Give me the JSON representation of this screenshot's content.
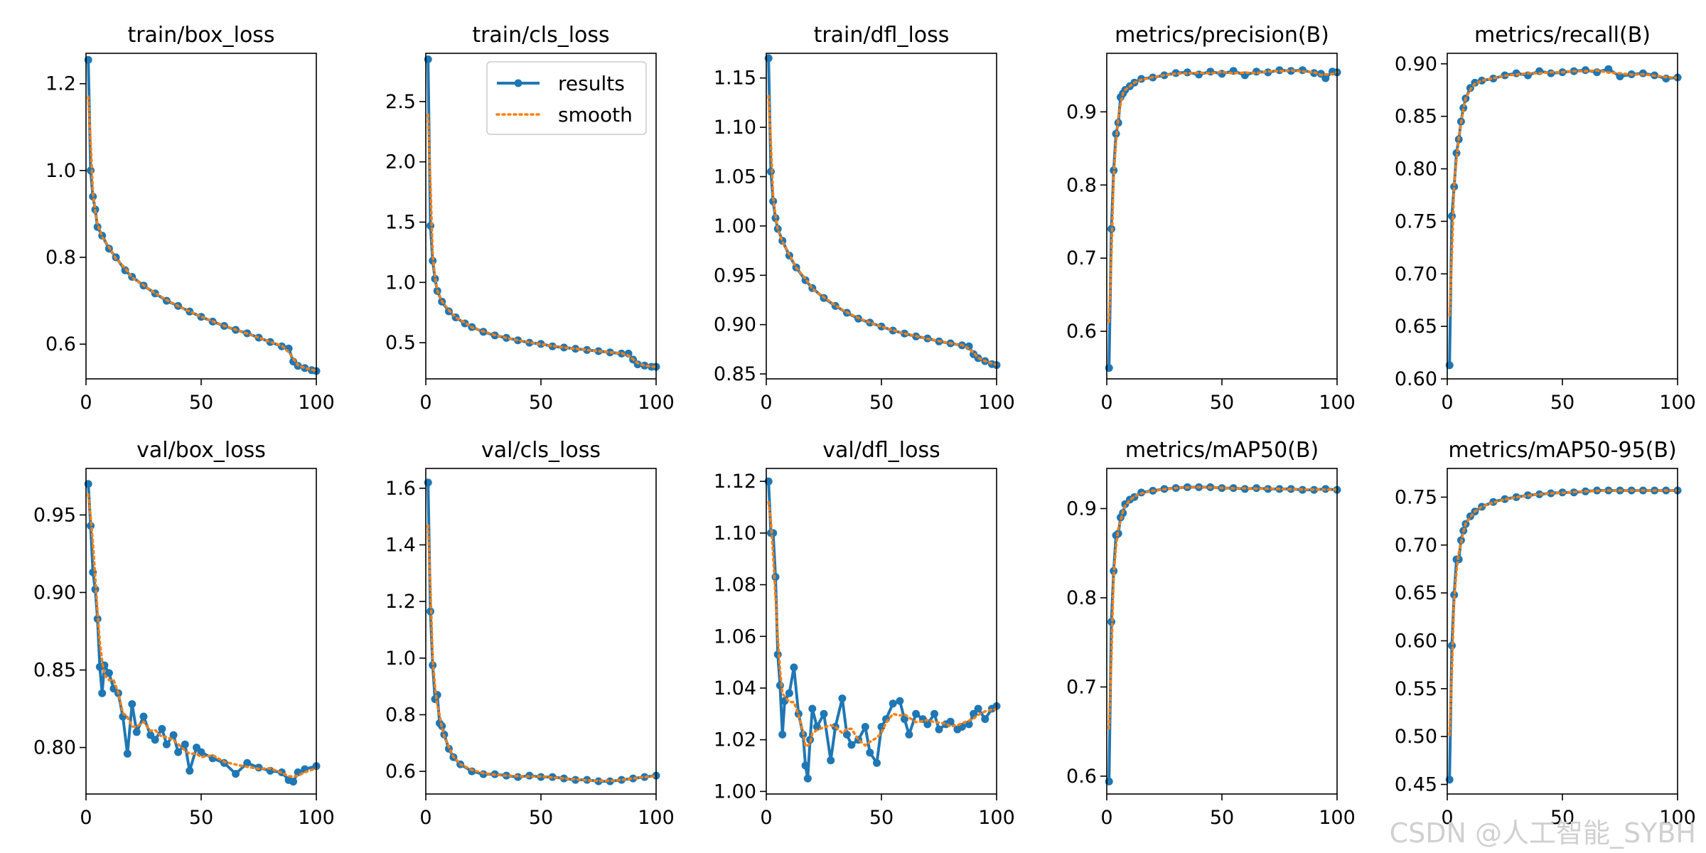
{
  "watermark": "CSDN @人工智能_SYBH",
  "legend": {
    "results_label": "results",
    "smooth_label": "smooth",
    "placement": "upper-right of train/cls_loss panel"
  },
  "colors": {
    "results": "#1f77b4",
    "smooth": "#ff7f0e",
    "axes": "#000000",
    "background": "#ffffff"
  },
  "chart_data": [
    {
      "type": "line",
      "title": "train/box_loss",
      "xlim": [
        0,
        100
      ],
      "ylim": [
        0.52,
        1.27
      ],
      "xticks": [
        0,
        50,
        100
      ],
      "xtick_labels": [
        "0",
        "50",
        "100"
      ],
      "yticks": [
        0.6,
        0.8,
        1.0,
        1.2
      ],
      "ytick_labels": [
        "0.6",
        "0.8",
        "1.0",
        "1.2"
      ],
      "series": [
        {
          "x": [
            1,
            2,
            3,
            4,
            5,
            7,
            10,
            13,
            17,
            20,
            25,
            30,
            35,
            40,
            45,
            50,
            55,
            60,
            65,
            70,
            75,
            80,
            85,
            88,
            90,
            92,
            95,
            98,
            100
          ],
          "values": [
            1.255,
            1.0,
            0.94,
            0.91,
            0.87,
            0.85,
            0.82,
            0.8,
            0.77,
            0.755,
            0.735,
            0.717,
            0.7,
            0.688,
            0.675,
            0.663,
            0.652,
            0.642,
            0.633,
            0.625,
            0.615,
            0.605,
            0.595,
            0.59,
            0.56,
            0.55,
            0.545,
            0.54,
            0.538
          ]
        }
      ]
    },
    {
      "type": "line",
      "title": "train/cls_loss",
      "xlim": [
        0,
        100
      ],
      "ylim": [
        0.2,
        2.9
      ],
      "xticks": [
        0,
        50,
        100
      ],
      "xtick_labels": [
        "0",
        "50",
        "100"
      ],
      "yticks": [
        0.5,
        1.0,
        1.5,
        2.0,
        2.5
      ],
      "ytick_labels": [
        "0.5",
        "1.0",
        "1.5",
        "2.0",
        "2.5"
      ],
      "series": [
        {
          "x": [
            1,
            2,
            3,
            4,
            5,
            7,
            10,
            13,
            17,
            20,
            25,
            30,
            35,
            40,
            45,
            50,
            55,
            60,
            65,
            70,
            75,
            80,
            85,
            88,
            90,
            92,
            95,
            98,
            100
          ],
          "values": [
            2.85,
            1.47,
            1.18,
            1.03,
            0.93,
            0.84,
            0.76,
            0.71,
            0.66,
            0.63,
            0.59,
            0.56,
            0.54,
            0.52,
            0.5,
            0.49,
            0.47,
            0.46,
            0.45,
            0.44,
            0.43,
            0.42,
            0.41,
            0.41,
            0.36,
            0.32,
            0.31,
            0.3,
            0.3
          ]
        }
      ]
    },
    {
      "type": "line",
      "title": "train/dfl_loss",
      "xlim": [
        0,
        100
      ],
      "ylim": [
        0.845,
        1.175
      ],
      "xticks": [
        0,
        50,
        100
      ],
      "xtick_labels": [
        "0",
        "50",
        "100"
      ],
      "yticks": [
        0.85,
        0.9,
        0.95,
        1.0,
        1.05,
        1.1,
        1.15
      ],
      "ytick_labels": [
        "0.85",
        "0.90",
        "0.95",
        "1.00",
        "1.05",
        "1.10",
        "1.15"
      ],
      "series": [
        {
          "x": [
            1,
            2,
            3,
            4,
            5,
            7,
            10,
            13,
            17,
            20,
            25,
            30,
            35,
            40,
            45,
            50,
            55,
            60,
            65,
            70,
            75,
            80,
            85,
            88,
            90,
            92,
            95,
            98,
            100
          ],
          "values": [
            1.17,
            1.055,
            1.025,
            1.008,
            0.997,
            0.985,
            0.97,
            0.958,
            0.945,
            0.937,
            0.927,
            0.919,
            0.912,
            0.906,
            0.902,
            0.898,
            0.894,
            0.891,
            0.888,
            0.886,
            0.883,
            0.881,
            0.879,
            0.878,
            0.87,
            0.866,
            0.863,
            0.86,
            0.859
          ]
        }
      ]
    },
    {
      "type": "line",
      "title": "metrics/precision(B)",
      "xlim": [
        0,
        100
      ],
      "ylim": [
        0.535,
        0.98
      ],
      "xticks": [
        0,
        50,
        100
      ],
      "xtick_labels": [
        "0",
        "50",
        "100"
      ],
      "yticks": [
        0.6,
        0.7,
        0.8,
        0.9
      ],
      "ytick_labels": [
        "0.6",
        "0.7",
        "0.8",
        "0.9"
      ],
      "series": [
        {
          "x": [
            1,
            2,
            3,
            4,
            5,
            6,
            7,
            8,
            10,
            12,
            15,
            20,
            25,
            30,
            35,
            40,
            45,
            50,
            55,
            60,
            65,
            70,
            75,
            80,
            85,
            90,
            93,
            95,
            98,
            100
          ],
          "values": [
            0.55,
            0.74,
            0.82,
            0.87,
            0.885,
            0.92,
            0.925,
            0.93,
            0.935,
            0.94,
            0.945,
            0.947,
            0.95,
            0.953,
            0.954,
            0.951,
            0.955,
            0.952,
            0.956,
            0.95,
            0.955,
            0.954,
            0.957,
            0.956,
            0.957,
            0.953,
            0.952,
            0.946,
            0.955,
            0.954
          ]
        }
      ]
    },
    {
      "type": "line",
      "title": "metrics/recall(B)",
      "xlim": [
        0,
        100
      ],
      "ylim": [
        0.6,
        0.91
      ],
      "xticks": [
        0,
        50,
        100
      ],
      "xtick_labels": [
        "0",
        "50",
        "100"
      ],
      "yticks": [
        0.6,
        0.65,
        0.7,
        0.75,
        0.8,
        0.85,
        0.9
      ],
      "ytick_labels": [
        "0.60",
        "0.65",
        "0.70",
        "0.75",
        "0.80",
        "0.85",
        "0.90"
      ],
      "series": [
        {
          "x": [
            1,
            2,
            3,
            4,
            5,
            6,
            7,
            8,
            10,
            12,
            15,
            20,
            25,
            30,
            35,
            40,
            45,
            50,
            55,
            60,
            65,
            70,
            75,
            80,
            85,
            90,
            95,
            100
          ],
          "values": [
            0.613,
            0.755,
            0.783,
            0.815,
            0.828,
            0.845,
            0.858,
            0.867,
            0.877,
            0.882,
            0.884,
            0.886,
            0.889,
            0.891,
            0.889,
            0.893,
            0.891,
            0.892,
            0.893,
            0.894,
            0.892,
            0.895,
            0.888,
            0.89,
            0.891,
            0.889,
            0.886,
            0.887
          ]
        }
      ]
    },
    {
      "type": "line",
      "title": "val/box_loss",
      "xlim": [
        0,
        100
      ],
      "ylim": [
        0.77,
        0.98
      ],
      "xticks": [
        0,
        50,
        100
      ],
      "xtick_labels": [
        "0",
        "50",
        "100"
      ],
      "yticks": [
        0.8,
        0.85,
        0.9,
        0.95
      ],
      "ytick_labels": [
        "0.80",
        "0.85",
        "0.90",
        "0.95"
      ],
      "series": [
        {
          "x": [
            1,
            2,
            3,
            4,
            5,
            6,
            7,
            8,
            10,
            12,
            14,
            16,
            18,
            20,
            22,
            25,
            28,
            30,
            33,
            35,
            38,
            40,
            43,
            45,
            48,
            50,
            55,
            60,
            65,
            70,
            75,
            80,
            85,
            88,
            90,
            92,
            95,
            100
          ],
          "values": [
            0.97,
            0.943,
            0.913,
            0.902,
            0.883,
            0.852,
            0.835,
            0.853,
            0.848,
            0.838,
            0.835,
            0.82,
            0.796,
            0.828,
            0.81,
            0.82,
            0.808,
            0.805,
            0.812,
            0.802,
            0.808,
            0.797,
            0.802,
            0.785,
            0.8,
            0.797,
            0.793,
            0.79,
            0.783,
            0.79,
            0.787,
            0.785,
            0.784,
            0.779,
            0.778,
            0.784,
            0.786,
            0.788
          ]
        }
      ]
    },
    {
      "type": "line",
      "title": "val/cls_loss",
      "xlim": [
        0,
        100
      ],
      "ylim": [
        0.52,
        1.67
      ],
      "xticks": [
        0,
        50,
        100
      ],
      "xtick_labels": [
        "0",
        "50",
        "100"
      ],
      "yticks": [
        0.6,
        0.8,
        1.0,
        1.2,
        1.4,
        1.6
      ],
      "ytick_labels": [
        "0.6",
        "0.8",
        "1.0",
        "1.2",
        "1.4",
        "1.6"
      ],
      "series": [
        {
          "x": [
            1,
            2,
            3,
            4,
            5,
            6,
            7,
            8,
            10,
            12,
            15,
            20,
            25,
            30,
            35,
            40,
            45,
            50,
            55,
            60,
            65,
            70,
            75,
            80,
            85,
            90,
            95,
            100
          ],
          "values": [
            1.62,
            1.165,
            0.975,
            0.855,
            0.87,
            0.77,
            0.76,
            0.73,
            0.68,
            0.65,
            0.625,
            0.6,
            0.59,
            0.59,
            0.585,
            0.58,
            0.585,
            0.58,
            0.58,
            0.575,
            0.57,
            0.57,
            0.565,
            0.565,
            0.57,
            0.575,
            0.58,
            0.585
          ]
        }
      ]
    },
    {
      "type": "line",
      "title": "val/dfl_loss",
      "xlim": [
        0,
        100
      ],
      "ylim": [
        0.999,
        1.125
      ],
      "xticks": [
        0,
        50,
        100
      ],
      "xtick_labels": [
        "0",
        "50",
        "100"
      ],
      "yticks": [
        1.0,
        1.02,
        1.04,
        1.06,
        1.08,
        1.1,
        1.12
      ],
      "ytick_labels": [
        "1.00",
        "1.02",
        "1.04",
        "1.06",
        "1.08",
        "1.10",
        "1.12"
      ],
      "series": [
        {
          "x": [
            1,
            2,
            3,
            4,
            5,
            6,
            7,
            8,
            10,
            12,
            14,
            16,
            17,
            18,
            19,
            20,
            22,
            25,
            28,
            30,
            33,
            35,
            37,
            40,
            43,
            45,
            48,
            50,
            52,
            55,
            58,
            60,
            62,
            65,
            68,
            70,
            73,
            75,
            78,
            80,
            83,
            85,
            88,
            90,
            92,
            95,
            98,
            100
          ],
          "values": [
            1.12,
            1.1,
            1.1,
            1.083,
            1.053,
            1.041,
            1.022,
            1.035,
            1.038,
            1.048,
            1.03,
            1.022,
            1.01,
            1.005,
            1.02,
            1.032,
            1.025,
            1.03,
            1.012,
            1.025,
            1.036,
            1.022,
            1.018,
            1.02,
            1.025,
            1.015,
            1.011,
            1.025,
            1.028,
            1.034,
            1.035,
            1.028,
            1.022,
            1.03,
            1.028,
            1.026,
            1.03,
            1.024,
            1.026,
            1.027,
            1.024,
            1.025,
            1.026,
            1.03,
            1.032,
            1.028,
            1.032,
            1.033
          ]
        }
      ]
    },
    {
      "type": "line",
      "title": "metrics/mAP50(B)",
      "xlim": [
        0,
        100
      ],
      "ylim": [
        0.58,
        0.945
      ],
      "xticks": [
        0,
        50,
        100
      ],
      "xtick_labels": [
        "0",
        "50",
        "100"
      ],
      "yticks": [
        0.6,
        0.7,
        0.8,
        0.9
      ],
      "ytick_labels": [
        "0.6",
        "0.7",
        "0.8",
        "0.9"
      ],
      "series": [
        {
          "x": [
            1,
            2,
            3,
            4,
            5,
            6,
            7,
            8,
            10,
            12,
            15,
            20,
            25,
            30,
            35,
            40,
            45,
            50,
            55,
            60,
            65,
            70,
            75,
            80,
            85,
            90,
            95,
            100
          ],
          "values": [
            0.594,
            0.773,
            0.83,
            0.87,
            0.872,
            0.89,
            0.895,
            0.905,
            0.91,
            0.913,
            0.918,
            0.92,
            0.922,
            0.923,
            0.924,
            0.924,
            0.924,
            0.923,
            0.923,
            0.922,
            0.923,
            0.922,
            0.922,
            0.922,
            0.921,
            0.921,
            0.922,
            0.921
          ]
        }
      ]
    },
    {
      "type": "line",
      "title": "metrics/mAP50-95(B)",
      "xlim": [
        0,
        100
      ],
      "ylim": [
        0.44,
        0.78
      ],
      "xticks": [
        0,
        50,
        100
      ],
      "xtick_labels": [
        "0",
        "50",
        "100"
      ],
      "yticks": [
        0.45,
        0.5,
        0.55,
        0.6,
        0.65,
        0.7,
        0.75
      ],
      "ytick_labels": [
        "0.45",
        "0.50",
        "0.55",
        "0.60",
        "0.65",
        "0.70",
        "0.75"
      ],
      "series": [
        {
          "x": [
            1,
            2,
            3,
            4,
            5,
            6,
            7,
            8,
            10,
            12,
            15,
            20,
            25,
            30,
            35,
            40,
            45,
            50,
            55,
            60,
            65,
            70,
            75,
            80,
            85,
            90,
            95,
            100
          ],
          "values": [
            0.455,
            0.595,
            0.648,
            0.685,
            0.685,
            0.705,
            0.715,
            0.722,
            0.73,
            0.735,
            0.74,
            0.745,
            0.748,
            0.75,
            0.752,
            0.753,
            0.754,
            0.755,
            0.755,
            0.756,
            0.757,
            0.757,
            0.757,
            0.757,
            0.757,
            0.757,
            0.757,
            0.757
          ]
        }
      ]
    }
  ]
}
